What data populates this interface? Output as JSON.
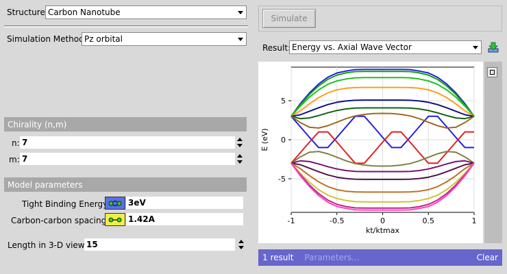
{
  "structure": {
    "label": "Structure:",
    "value": "Carbon Nanotube"
  },
  "simulation_method": {
    "label": "Simulation Method:",
    "value": "Pz orbital"
  },
  "chirality": {
    "title": "Chirality (n,m)",
    "n_label": "n:",
    "n_value": "7",
    "m_label": "m:",
    "m_value": "7"
  },
  "model": {
    "title": "Model parameters",
    "tb_label": "Tight Binding Energy:",
    "tb_value": "3eV",
    "cc_label": "Carbon-carbon spacing:",
    "cc_value": "1.42A"
  },
  "length": {
    "label": "Length in 3-D view:",
    "value": "15"
  },
  "simulate_button": "Simulate",
  "result": {
    "label": "Result:",
    "value": "Energy vs. Axial Wave Vector"
  },
  "bottom_bar": {
    "count": "1 result",
    "params": "Parameters...",
    "clear": "Clear",
    "color": "#6666cc"
  },
  "chart_data": {
    "type": "line",
    "xlabel": "kt/ktmax",
    "ylabel": "E (eV)",
    "xlim": [
      -1,
      1
    ],
    "ylim": [
      -9.3,
      9.3
    ],
    "xticks": [
      "-1",
      "-0.5",
      "0",
      "0.5",
      "1"
    ],
    "yticks": [
      "5",
      "0",
      "-5"
    ],
    "x": [
      -1,
      -0.9,
      -0.8,
      -0.7,
      -0.6,
      -0.5,
      -0.4,
      -0.3,
      -0.2,
      -0.1,
      0,
      0.1,
      0.2,
      0.3,
      0.4,
      0.5,
      0.6,
      0.7,
      0.8,
      0.9,
      1
    ],
    "series": [
      {
        "color": "#2020e0",
        "values": [
          3.0,
          1.67,
          0.31,
          -1.0,
          -1.0,
          0.31,
          1.67,
          3.0,
          3.0,
          1.67,
          0.31,
          -1.0,
          -1.0,
          0.31,
          1.67,
          3.0,
          3.0,
          1.67,
          0.31,
          -1.0,
          -1.0
        ]
      },
      {
        "color": "#e02020",
        "values": [
          -3.0,
          -1.67,
          -0.31,
          1.0,
          1.0,
          -0.31,
          -1.67,
          -3.0,
          -3.0,
          -1.67,
          -0.31,
          1.0,
          1.0,
          -0.31,
          -1.67,
          -3.0,
          -3.0,
          -1.67,
          -0.31,
          1.0,
          1.0
        ]
      },
      {
        "color": "#2020e0",
        "values": [
          3.0,
          4.62,
          6.0,
          7.14,
          8.0,
          8.55,
          8.8,
          8.98,
          9.0,
          9.0,
          9.0,
          9.0,
          9.0,
          8.98,
          8.8,
          8.55,
          8.0,
          7.14,
          6.0,
          4.62,
          3.0
        ]
      },
      {
        "color": "#10a010",
        "values": [
          3.0,
          4.48,
          5.8,
          6.9,
          7.73,
          8.28,
          8.56,
          8.73,
          8.75,
          8.75,
          8.75,
          8.75,
          8.75,
          8.73,
          8.56,
          8.28,
          7.73,
          6.9,
          5.8,
          4.48,
          3.0
        ]
      },
      {
        "color": "#20c020",
        "values": [
          3.0,
          4.3,
          5.46,
          6.4,
          7.1,
          7.54,
          7.78,
          7.93,
          7.96,
          7.96,
          7.96,
          7.96,
          7.96,
          7.93,
          7.78,
          7.54,
          7.1,
          6.4,
          5.46,
          4.3,
          3.0
        ]
      },
      {
        "color": "#ff9c1c",
        "values": [
          3.0,
          3.7,
          4.6,
          5.4,
          6.0,
          6.4,
          6.6,
          6.68,
          6.7,
          6.7,
          6.7,
          6.7,
          6.7,
          6.68,
          6.6,
          6.4,
          6.0,
          5.4,
          4.6,
          3.7,
          3.0
        ]
      },
      {
        "color": "#101080",
        "values": [
          3.0,
          3.2,
          3.65,
          4.1,
          4.5,
          4.8,
          4.97,
          5.05,
          5.08,
          5.08,
          5.08,
          5.08,
          5.08,
          5.05,
          4.97,
          4.8,
          4.5,
          4.1,
          3.65,
          3.2,
          3.0
        ]
      },
      {
        "color": "#106010",
        "values": [
          3.0,
          2.7,
          2.8,
          3.1,
          3.45,
          3.75,
          3.95,
          4.05,
          4.08,
          4.08,
          4.08,
          4.08,
          4.08,
          4.05,
          3.95,
          3.75,
          3.45,
          3.1,
          2.8,
          2.7,
          3.0
        ]
      },
      {
        "color": "#a06820",
        "values": [
          3.0,
          2.2,
          1.6,
          1.5,
          1.8,
          2.25,
          2.7,
          3.05,
          3.25,
          3.35,
          3.38,
          3.35,
          3.25,
          3.05,
          2.7,
          2.25,
          1.8,
          1.5,
          1.6,
          2.2,
          3.0
        ]
      },
      {
        "color": "#808040",
        "values": [
          -3.0,
          -2.2,
          -1.6,
          -1.5,
          -1.8,
          -2.25,
          -2.7,
          -3.05,
          -3.25,
          -3.35,
          -3.38,
          -3.35,
          -3.25,
          -3.05,
          -2.7,
          -2.25,
          -1.8,
          -1.5,
          -1.6,
          -2.2,
          -3.0
        ]
      },
      {
        "color": "#7a1070",
        "values": [
          -3.0,
          -2.7,
          -2.8,
          -3.1,
          -3.45,
          -3.75,
          -3.95,
          -4.05,
          -4.08,
          -4.08,
          -4.08,
          -4.08,
          -4.08,
          -4.05,
          -3.95,
          -3.75,
          -3.45,
          -3.1,
          -2.8,
          -2.7,
          -3.0
        ]
      },
      {
        "color": "#501050",
        "values": [
          -3.0,
          -3.2,
          -3.65,
          -4.1,
          -4.5,
          -4.8,
          -4.97,
          -5.05,
          -5.08,
          -5.08,
          -5.08,
          -5.08,
          -5.08,
          -5.05,
          -4.97,
          -4.8,
          -4.5,
          -4.1,
          -3.65,
          -3.2,
          -3.0
        ]
      },
      {
        "color": "#c07020",
        "values": [
          -3.0,
          -3.7,
          -4.6,
          -5.4,
          -6.0,
          -6.4,
          -6.6,
          -6.68,
          -6.7,
          -6.7,
          -6.7,
          -6.7,
          -6.7,
          -6.68,
          -6.6,
          -6.4,
          -6.0,
          -5.4,
          -4.6,
          -3.7,
          -3.0
        ]
      },
      {
        "color": "#c8c830",
        "values": [
          -3.0,
          -4.3,
          -5.46,
          -6.4,
          -7.1,
          -7.54,
          -7.78,
          -7.93,
          -7.96,
          -7.96,
          -7.96,
          -7.96,
          -7.96,
          -7.93,
          -7.78,
          -7.54,
          -7.1,
          -6.4,
          -5.46,
          -4.3,
          -3.0
        ]
      },
      {
        "color": "#c02090",
        "values": [
          -3.0,
          -4.48,
          -5.8,
          -6.9,
          -7.73,
          -8.28,
          -8.56,
          -8.73,
          -8.75,
          -8.75,
          -8.75,
          -8.75,
          -8.75,
          -8.73,
          -8.56,
          -8.28,
          -7.73,
          -6.9,
          -5.8,
          -4.48,
          -3.0
        ]
      },
      {
        "color": "#ff40c0",
        "values": [
          -3.0,
          -4.62,
          -6.0,
          -7.14,
          -8.0,
          -8.55,
          -8.8,
          -8.98,
          -9.0,
          -9.0,
          -9.0,
          -9.0,
          -9.0,
          -8.98,
          -8.8,
          -8.55,
          -8.0,
          -7.14,
          -6.0,
          -4.62,
          -3.0
        ]
      }
    ]
  }
}
